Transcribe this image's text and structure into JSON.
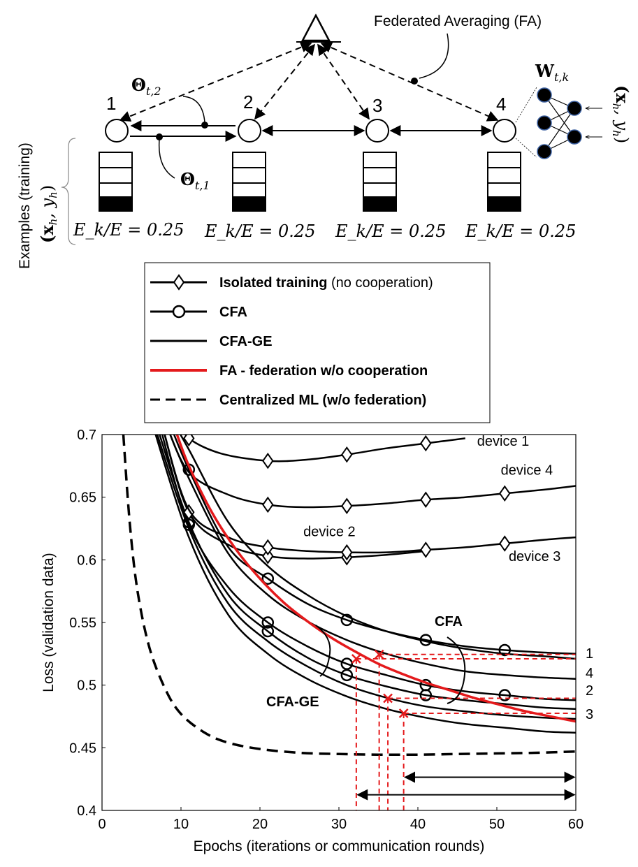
{
  "diagram": {
    "fa_label": "Federated Averaging (FA)",
    "theta_t2": "Θ",
    "theta_t2_sub": "t,2",
    "theta_t1": "Θ",
    "theta_t1_sub": "t,1",
    "w_label": "W",
    "w_sub": "t,k",
    "xy_label": "(x",
    "xy_h": "h",
    "xy_mid": ", y",
    "xy_end": ")",
    "examples_label": "Examples (training)",
    "nodes": [
      {
        "id": "1",
        "ratio": "E_k/E = 0.25"
      },
      {
        "id": "2",
        "ratio": "E_k/E = 0.25"
      },
      {
        "id": "3",
        "ratio": "E_k/E = 0.25"
      },
      {
        "id": "4",
        "ratio": "E_k/E = 0.25"
      }
    ]
  },
  "legend": [
    {
      "bold": "Isolated training",
      "normal": " (no cooperation)",
      "marker": "diamond",
      "color": "#000000",
      "dash": "solid"
    },
    {
      "bold": "CFA",
      "normal": "",
      "marker": "circle",
      "color": "#000000",
      "dash": "solid"
    },
    {
      "bold": "CFA-GE",
      "normal": "",
      "marker": "none",
      "color": "#000000",
      "dash": "solid"
    },
    {
      "bold": "FA - federation w/o cooperation",
      "normal": "",
      "marker": "none",
      "color": "#e41a1c",
      "dash": "solid"
    },
    {
      "bold": "Centralized ML (w/o federation)",
      "normal": "",
      "marker": "none",
      "color": "#000000",
      "dash": "dashed"
    }
  ],
  "chart_data": {
    "type": "line",
    "xlabel": "Epochs (iterations or communication rounds)",
    "ylabel": "Loss (validation data)",
    "xlim": [
      0,
      60
    ],
    "ylim": [
      0.4,
      0.7
    ],
    "xticks": [
      "0",
      "10",
      "20",
      "30",
      "40",
      "50",
      "60"
    ],
    "yticks": [
      "0.4",
      "0.45",
      "0.5",
      "0.55",
      "0.6",
      "0.65",
      "0.7"
    ],
    "series": [
      {
        "name": "device 1",
        "style": "isolated",
        "x": [
          10,
          11,
          15,
          21,
          26,
          31,
          36,
          41,
          46
        ],
        "y": [
          0.71,
          0.697,
          0.685,
          0.679,
          0.68,
          0.684,
          0.689,
          0.693,
          0.697
        ],
        "markers_at": [
          11,
          21,
          31,
          41
        ]
      },
      {
        "name": "device 4",
        "style": "isolated",
        "x": [
          8,
          11,
          16,
          21,
          26,
          31,
          36,
          41,
          46,
          51,
          56,
          60
        ],
        "y": [
          0.71,
          0.67,
          0.652,
          0.644,
          0.642,
          0.643,
          0.645,
          0.648,
          0.65,
          0.653,
          0.656,
          0.659
        ],
        "markers_at": [
          21,
          31,
          41,
          51
        ]
      },
      {
        "name": "device 2",
        "style": "isolated",
        "x": [
          7.5,
          11,
          16,
          21,
          26,
          31,
          36,
          41
        ],
        "y": [
          0.71,
          0.638,
          0.612,
          0.603,
          0.601,
          0.602,
          0.604,
          0.607
        ],
        "markers_at": [
          11,
          21,
          31
        ]
      },
      {
        "name": "device 3",
        "style": "isolated",
        "x": [
          7.5,
          11,
          16,
          21,
          26,
          31,
          36,
          41,
          46,
          51,
          56,
          60
        ],
        "y": [
          0.71,
          0.64,
          0.618,
          0.61,
          0.607,
          0.606,
          0.606,
          0.608,
          0.61,
          0.613,
          0.616,
          0.618
        ],
        "markers_at": [
          21,
          31,
          41,
          51
        ]
      },
      {
        "name": "CFA 1",
        "style": "cfa",
        "x": [
          8.5,
          11,
          16,
          21,
          26,
          31,
          36,
          41,
          46,
          51,
          56,
          60
        ],
        "y": [
          0.71,
          0.672,
          0.61,
          0.585,
          0.565,
          0.552,
          0.543,
          0.536,
          0.531,
          0.528,
          0.526,
          0.525
        ],
        "markers_at": [
          11,
          21,
          31,
          41,
          51
        ]
      },
      {
        "name": "CFA 4",
        "style": "cfa",
        "x": [
          7.2,
          11,
          16,
          21,
          26,
          31,
          36,
          41,
          46,
          51,
          56,
          60
        ],
        "y": [
          0.71,
          0.628,
          0.578,
          0.55,
          0.531,
          0.517,
          0.508,
          0.5,
          0.495,
          0.492,
          0.489,
          0.488
        ],
        "markers_at": [
          11,
          21,
          31,
          41,
          51
        ]
      },
      {
        "name": "CFA 2",
        "style": "cfa",
        "x": [
          6.8,
          11,
          16,
          21,
          26,
          31,
          36,
          41,
          46,
          51,
          56,
          60
        ],
        "y": [
          0.71,
          0.63,
          0.572,
          0.543,
          0.522,
          0.508,
          0.499,
          0.492,
          0.488,
          0.485,
          0.482,
          0.481
        ],
        "markers_at": [
          11,
          21,
          31,
          41
        ]
      },
      {
        "name": "CFA-GE 1",
        "style": "cfage",
        "x": [
          9,
          11,
          16,
          21,
          26,
          31,
          36,
          41,
          46,
          51,
          56,
          60
        ],
        "y": [
          0.71,
          0.688,
          0.63,
          0.595,
          0.572,
          0.555,
          0.543,
          0.535,
          0.529,
          0.525,
          0.523,
          0.521
        ],
        "markers_at": []
      },
      {
        "name": "CFA-GE 4",
        "style": "cfage",
        "x": [
          8,
          11,
          16,
          21,
          26,
          31,
          36,
          41,
          46,
          51,
          56,
          60
        ],
        "y": [
          0.71,
          0.665,
          0.605,
          0.572,
          0.551,
          0.536,
          0.525,
          0.517,
          0.511,
          0.508,
          0.506,
          0.505
        ],
        "markers_at": []
      },
      {
        "name": "CFA-GE 2",
        "style": "cfage",
        "x": [
          6.5,
          11,
          16,
          21,
          26,
          31,
          36,
          41,
          46,
          51,
          56,
          60
        ],
        "y": [
          0.71,
          0.625,
          0.565,
          0.535,
          0.515,
          0.5,
          0.49,
          0.483,
          0.479,
          0.476,
          0.474,
          0.473
        ],
        "markers_at": []
      },
      {
        "name": "CFA-GE 3",
        "style": "cfage",
        "x": [
          6.3,
          11,
          16,
          21,
          26,
          31,
          36,
          41,
          46,
          51,
          56,
          60
        ],
        "y": [
          0.71,
          0.618,
          0.556,
          0.525,
          0.505,
          0.491,
          0.481,
          0.474,
          0.469,
          0.466,
          0.463,
          0.462
        ],
        "markers_at": []
      },
      {
        "name": "FA",
        "style": "fa",
        "x": [
          9.5,
          11,
          14,
          17,
          20,
          23,
          26,
          29,
          32,
          35,
          38,
          41,
          44,
          47,
          50,
          53,
          56,
          60
        ],
        "y": [
          0.7,
          0.675,
          0.637,
          0.608,
          0.585,
          0.566,
          0.551,
          0.538,
          0.527,
          0.517,
          0.509,
          0.502,
          0.496,
          0.49,
          0.485,
          0.48,
          0.476,
          0.471
        ],
        "markers_at": []
      },
      {
        "name": "Centralized",
        "style": "central",
        "x": [
          2.7,
          3.5,
          4.5,
          6,
          8,
          10,
          13,
          16,
          20,
          25,
          30,
          35,
          40,
          45,
          50,
          55,
          60
        ],
        "y": [
          0.7,
          0.63,
          0.575,
          0.53,
          0.497,
          0.477,
          0.462,
          0.454,
          0.449,
          0.446,
          0.445,
          0.4445,
          0.4445,
          0.445,
          0.4455,
          0.446,
          0.447
        ],
        "markers_at": []
      }
    ],
    "annotations": {
      "device_labels": [
        {
          "text": "device 1",
          "x": 47.5,
          "y": 0.691
        },
        {
          "text": "device 4",
          "x": 50.5,
          "y": 0.668
        },
        {
          "text": "device 2",
          "x": 25.5,
          "y": 0.619
        },
        {
          "text": "device 3",
          "x": 51.5,
          "y": 0.599
        }
      ],
      "cfa_label": "CFA",
      "cfage_label": "CFA-GE",
      "right_numbers": [
        "1",
        "4",
        "2",
        "3"
      ],
      "crosses": [
        {
          "x": 32.2,
          "y": 0.521
        },
        {
          "x": 35.1,
          "y": 0.5245
        },
        {
          "x": 36.2,
          "y": 0.4895
        },
        {
          "x": 38.2,
          "y": 0.4775
        }
      ],
      "range_arrows": [
        {
          "from": 38.2,
          "to": 60,
          "y": 0.4265
        },
        {
          "from": 32.2,
          "to": 60,
          "y": 0.4125
        }
      ]
    }
  }
}
